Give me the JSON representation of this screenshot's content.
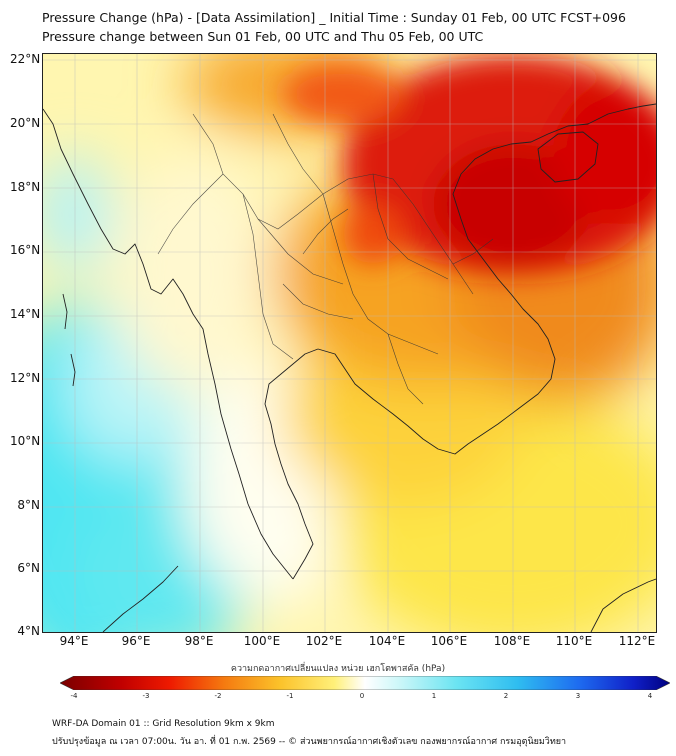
{
  "title_line1": "Pressure Change (hPa) - [Data Assimilation] _ Initial Time : Sunday 01 Feb, 00 UTC FCST+096",
  "title_line2": "Pressure change between Sun 01 Feb, 00 UTC and Thu 05 Feb, 00 UTC",
  "lat_labels": [
    "22°N",
    "20°N",
    "18°N",
    "16°N",
    "14°N",
    "12°N",
    "10°N",
    "8°N",
    "6°N",
    "4°N"
  ],
  "lon_labels": [
    "94°E",
    "96°E",
    "98°E",
    "100°E",
    "102°E",
    "104°E",
    "106°E",
    "108°E",
    "110°E",
    "112°E"
  ],
  "colorbar": {
    "title": "ความกดอากาศเปลี่ยนแปลง หน่วย เฮกโตพาสคัล (hPa)",
    "ticks": [
      "-4",
      "-3",
      "-2",
      "-1",
      "0",
      "1",
      "2",
      "3",
      "4"
    ],
    "min": -4,
    "max": 4
  },
  "footer_line1": "WRF-DA Domain 01 :: Grid Resolution 9km x 9km",
  "footer_line2": "ปรับปรุงข้อมูล ณ เวลา 07:00น. วัน อา. ที่ 01 ก.พ. 2569 -- © ส่วนพยากรณ์อากาศเชิงตัวเลข กองพยากรณ์อากาศ กรมอุตุนิยมวิทยา",
  "colors": {
    "strong_rise_red": "#d40000",
    "orange": "#f08a1a",
    "yellow": "#fde23a",
    "pale": "#fffde0",
    "cyan": "#40e6f0"
  }
}
